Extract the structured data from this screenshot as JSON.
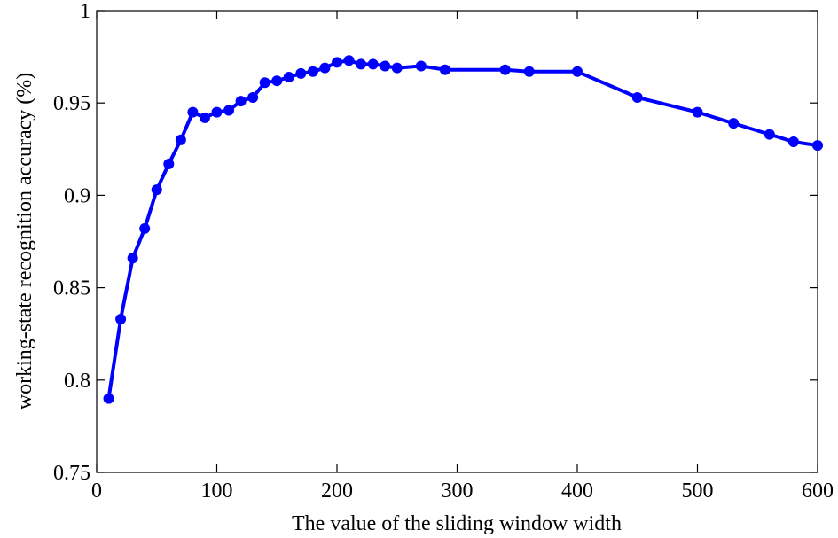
{
  "chart_data": {
    "type": "line",
    "title": "",
    "xlabel": "The value of the sliding window width",
    "ylabel": "working-state recognition accuracy (%)",
    "xlim": [
      0,
      600
    ],
    "ylim": [
      0.75,
      1.0
    ],
    "x_ticks": [
      0,
      100,
      200,
      300,
      400,
      500,
      600
    ],
    "x_tick_labels": [
      "0",
      "100",
      "200",
      "300",
      "400",
      "500",
      "600"
    ],
    "y_ticks": [
      0.75,
      0.8,
      0.85,
      0.9,
      0.95,
      1.0
    ],
    "y_tick_labels": [
      "0.75",
      "0.8",
      "0.85",
      "0.9",
      "0.95",
      "1"
    ],
    "grid": false,
    "series": [
      {
        "color": "#0000ff",
        "marker": "circle",
        "x": [
          10,
          20,
          30,
          40,
          50,
          60,
          70,
          80,
          90,
          100,
          110,
          120,
          130,
          140,
          150,
          160,
          170,
          180,
          190,
          200,
          210,
          220,
          230,
          240,
          250,
          270,
          290,
          340,
          360,
          400,
          450,
          500,
          530,
          560,
          580,
          600
        ],
        "y": [
          0.79,
          0.833,
          0.866,
          0.882,
          0.903,
          0.917,
          0.93,
          0.945,
          0.942,
          0.945,
          0.946,
          0.951,
          0.953,
          0.961,
          0.962,
          0.964,
          0.966,
          0.967,
          0.969,
          0.972,
          0.973,
          0.971,
          0.971,
          0.97,
          0.969,
          0.97,
          0.968,
          0.968,
          0.967,
          0.967,
          0.953,
          0.945,
          0.939,
          0.933,
          0.929,
          0.927
        ]
      }
    ]
  }
}
